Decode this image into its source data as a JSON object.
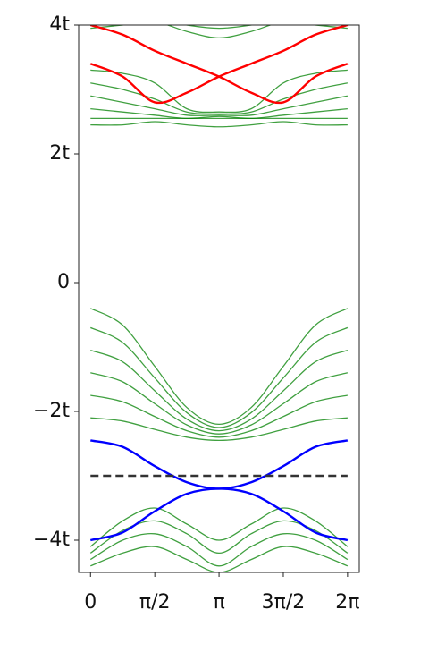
{
  "chart_data": {
    "type": "line",
    "x": [
      0,
      0.7854,
      1.5708,
      2.3562,
      3.1416,
      3.927,
      4.7124,
      5.4978,
      6.2832
    ],
    "xlim": [
      -0.29,
      6.57
    ],
    "xticks": [
      0,
      {
        "value": 1.5708,
        "label": "π/2"
      },
      {
        "value": 3.1416,
        "label": "π"
      },
      {
        "value": 4.7124,
        "label": "3π/2"
      },
      {
        "value": 6.2832,
        "label": "2π"
      }
    ],
    "ylim": [
      -4.5,
      4
    ],
    "yticks": [
      {
        "value": 4,
        "label": "4t"
      },
      {
        "value": 2,
        "label": "2t"
      },
      0,
      {
        "value": -2,
        "label": "−2t"
      },
      {
        "value": -4,
        "label": "−4t"
      }
    ],
    "reference_line": {
      "value": -3,
      "color": "#333333"
    },
    "series": [
      {
        "color": "#008000",
        "values": [
          -0.4,
          -0.66,
          -1.3,
          -1.94,
          -2.2,
          -1.94,
          -1.3,
          -0.66,
          -0.4
        ]
      },
      {
        "color": "#008000",
        "values": [
          -0.7,
          -0.93,
          -1.48,
          -2.02,
          -2.25,
          -2.02,
          -1.48,
          -0.93,
          -0.7
        ]
      },
      {
        "color": "#008000",
        "values": [
          -1.05,
          -1.23,
          -1.68,
          -2.12,
          -2.3,
          -2.12,
          -1.68,
          -1.23,
          -1.05
        ]
      },
      {
        "color": "#008000",
        "values": [
          -1.4,
          -1.54,
          -1.88,
          -2.21,
          -2.35,
          -2.21,
          -1.88,
          -1.54,
          -1.4
        ]
      },
      {
        "color": "#008000",
        "values": [
          -1.75,
          -1.85,
          -2.08,
          -2.3,
          -2.4,
          -2.3,
          -2.08,
          -1.85,
          -1.75
        ]
      },
      {
        "color": "#008000",
        "values": [
          -2.1,
          -2.15,
          -2.28,
          -2.4,
          -2.45,
          -2.4,
          -2.28,
          -2.15,
          -2.1
        ]
      },
      {
        "color": "#008000",
        "values": [
          -4.1,
          -3.7,
          -3.5,
          -3.75,
          -4.0,
          -3.75,
          -3.5,
          -3.7,
          -4.1
        ]
      },
      {
        "color": "#008000",
        "values": [
          -4.2,
          -3.85,
          -3.7,
          -3.9,
          -4.2,
          -3.9,
          -3.7,
          -3.85,
          -4.2
        ]
      },
      {
        "color": "#008000",
        "values": [
          -4.3,
          -4.0,
          -3.9,
          -4.1,
          -4.4,
          -4.1,
          -3.9,
          -4.0,
          -4.3
        ]
      },
      {
        "color": "#008000",
        "values": [
          -4.4,
          -4.2,
          -4.1,
          -4.3,
          -4.5,
          -4.3,
          -4.1,
          -4.2,
          -4.4
        ]
      },
      {
        "color": "#008000",
        "values": [
          2.45,
          2.45,
          2.5,
          2.45,
          2.42,
          2.45,
          2.5,
          2.45,
          2.45
        ]
      },
      {
        "color": "#008000",
        "values": [
          2.55,
          2.55,
          2.55,
          2.55,
          2.55,
          2.55,
          2.55,
          2.55,
          2.55
        ]
      },
      {
        "color": "#008000",
        "values": [
          2.7,
          2.65,
          2.6,
          2.55,
          2.58,
          2.55,
          2.6,
          2.65,
          2.7
        ]
      },
      {
        "color": "#008000",
        "values": [
          2.9,
          2.8,
          2.7,
          2.6,
          2.6,
          2.6,
          2.7,
          2.8,
          2.9
        ]
      },
      {
        "color": "#008000",
        "values": [
          3.1,
          3.0,
          2.85,
          2.65,
          2.62,
          2.65,
          2.85,
          3.0,
          3.1
        ]
      },
      {
        "color": "#008000",
        "values": [
          3.3,
          3.25,
          3.1,
          2.7,
          2.65,
          2.7,
          3.1,
          3.25,
          3.3
        ]
      },
      {
        "color": "#008000",
        "values": [
          3.95,
          4.0,
          4.05,
          3.9,
          3.8,
          3.9,
          4.05,
          4.0,
          3.95
        ]
      },
      {
        "color": "#008000",
        "values": [
          4.1,
          4.1,
          4.1,
          4.0,
          3.95,
          4.0,
          4.1,
          4.1,
          4.1
        ]
      },
      {
        "color": "#0000ff",
        "values": [
          -2.45,
          -2.55,
          -2.85,
          -3.1,
          -3.2,
          -3.1,
          -2.85,
          -2.55,
          -2.45
        ]
      },
      {
        "color": "#0000ff",
        "values": [
          -4.0,
          -3.88,
          -3.55,
          -3.28,
          -3.2,
          -3.28,
          -3.55,
          -3.88,
          -4.0
        ]
      },
      {
        "color": "#ff0000",
        "values": [
          4.0,
          3.85,
          3.6,
          3.4,
          3.2,
          2.95,
          2.8,
          3.2,
          3.4
        ]
      },
      {
        "color": "#ff0000",
        "values": [
          3.4,
          3.2,
          2.8,
          2.95,
          3.2,
          3.4,
          3.6,
          3.85,
          4.0
        ]
      }
    ]
  }
}
